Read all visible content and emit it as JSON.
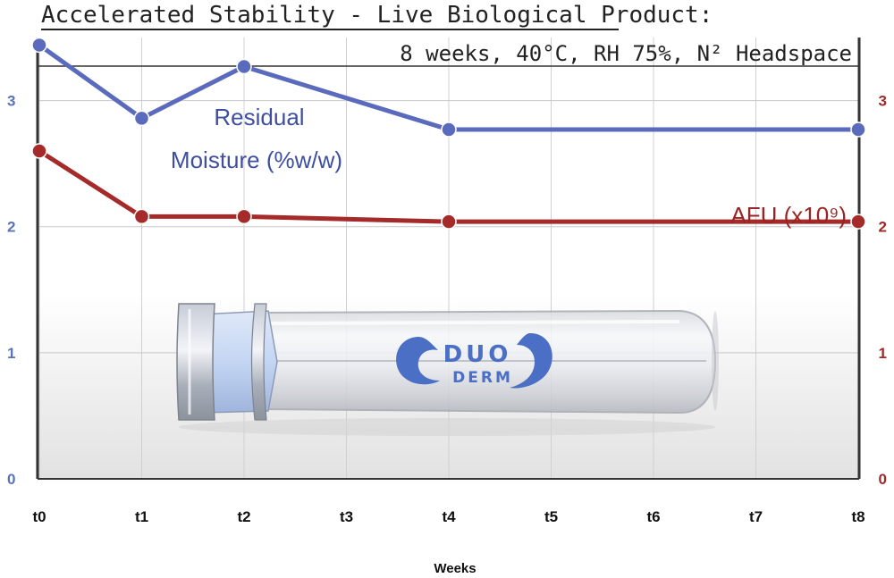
{
  "chart_data": {
    "type": "line",
    "title": "Accelerated Stability - Live Biological Product:",
    "subtitle": "8 weeks,  40°C,  RH 75%,  N² Headspace",
    "xlabel": "Weeks",
    "categories": [
      "t0",
      "t1",
      "t2",
      "t3",
      "t4",
      "t5",
      "t6",
      "t7",
      "t8"
    ],
    "y_left_ticks": [
      "0",
      "1",
      "2",
      "3"
    ],
    "y_right_ticks": [
      "0",
      "1",
      "2",
      "3"
    ],
    "y_left_range": [
      0,
      3.5
    ],
    "y_right_range": [
      0,
      3.5
    ],
    "grid": true,
    "series": [
      {
        "name": "Residual Moisture (%w/w)",
        "label_line1": "Residual",
        "label_line2": "Moisture (%w/w)",
        "axis": "left",
        "color": "#5a6bbd",
        "points": [
          {
            "x": "t0",
            "y": 3.44
          },
          {
            "x": "t1",
            "y": 2.86
          },
          {
            "x": "t2",
            "y": 3.27
          },
          {
            "x": "t4",
            "y": 2.77
          },
          {
            "x": "t8",
            "y": 2.77
          }
        ]
      },
      {
        "name": "AFU (x10⁹)",
        "label": "AFU (x10⁹)",
        "axis": "right",
        "color": "#a52a2a",
        "points": [
          {
            "x": "t0",
            "y": 2.6
          },
          {
            "x": "t1",
            "y": 2.08
          },
          {
            "x": "t2",
            "y": 2.08
          },
          {
            "x": "t4",
            "y": 2.04
          },
          {
            "x": "t8",
            "y": 2.04
          }
        ]
      }
    ]
  },
  "brand": {
    "line1": "DUO",
    "line2": "DERM",
    "color": "#4a6fc4"
  }
}
